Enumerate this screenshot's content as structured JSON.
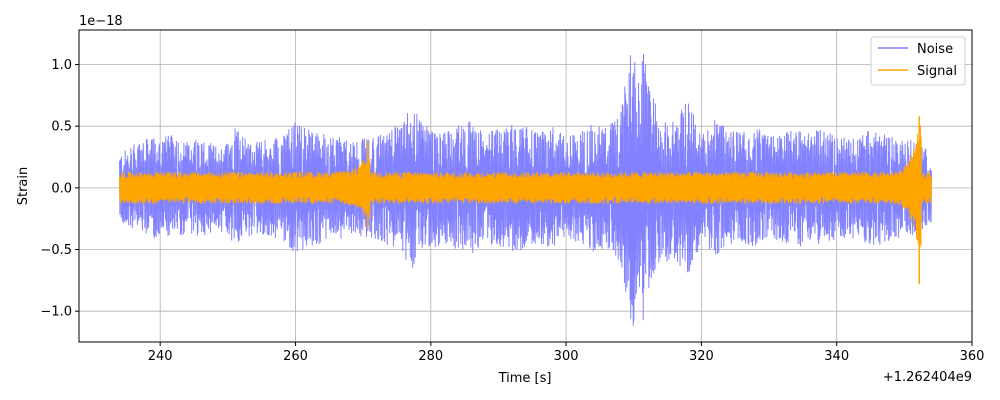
{
  "chart_data": {
    "type": "line",
    "title": "",
    "xlabel": "Time [s]",
    "ylabel": "Strain",
    "x_offset_text": "+1.262404e9",
    "y_scale_text": "1e−18",
    "xlim": [
      228,
      360
    ],
    "ylim": [
      -1.25,
      1.28
    ],
    "x_ticks": [
      240,
      260,
      280,
      300,
      320,
      340,
      360
    ],
    "x_tick_labels": [
      "240",
      "260",
      "280",
      "300",
      "320",
      "340",
      "360"
    ],
    "y_ticks": [
      -1.0,
      -0.5,
      0.0,
      0.5,
      1.0
    ],
    "y_tick_labels": [
      "−1.0",
      "−0.5",
      "0.0",
      "0.5",
      "1.0"
    ],
    "grid": true,
    "legend_position": "top-right",
    "series": [
      {
        "name": "Noise",
        "color": "#7b7bff",
        "x_range": [
          234,
          354
        ],
        "envelope": [
          [
            234,
            0.28
          ],
          [
            236,
            0.35
          ],
          [
            238,
            0.4
          ],
          [
            240,
            0.42
          ],
          [
            242,
            0.43
          ],
          [
            244,
            0.38
          ],
          [
            246,
            0.4
          ],
          [
            248,
            0.35
          ],
          [
            250,
            0.38
          ],
          [
            251,
            0.52
          ],
          [
            252,
            0.45
          ],
          [
            254,
            0.37
          ],
          [
            256,
            0.4
          ],
          [
            258,
            0.42
          ],
          [
            260,
            0.55
          ],
          [
            262,
            0.48
          ],
          [
            264,
            0.45
          ],
          [
            266,
            0.42
          ],
          [
            268,
            0.4
          ],
          [
            270,
            0.4
          ],
          [
            272,
            0.42
          ],
          [
            274,
            0.48
          ],
          [
            276,
            0.55
          ],
          [
            277,
            0.68
          ],
          [
            278,
            0.6
          ],
          [
            280,
            0.5
          ],
          [
            282,
            0.45
          ],
          [
            284,
            0.52
          ],
          [
            286,
            0.55
          ],
          [
            288,
            0.45
          ],
          [
            290,
            0.48
          ],
          [
            292,
            0.52
          ],
          [
            294,
            0.5
          ],
          [
            296,
            0.45
          ],
          [
            298,
            0.5
          ],
          [
            300,
            0.42
          ],
          [
            302,
            0.45
          ],
          [
            304,
            0.52
          ],
          [
            306,
            0.5
          ],
          [
            308,
            0.6
          ],
          [
            309.5,
            1.1
          ],
          [
            310,
            1.15
          ],
          [
            310.5,
            0.8
          ],
          [
            311.5,
            1.12
          ],
          [
            312,
            0.85
          ],
          [
            314,
            0.58
          ],
          [
            316,
            0.62
          ],
          [
            318,
            0.72
          ],
          [
            319,
            0.58
          ],
          [
            320,
            0.45
          ],
          [
            322,
            0.55
          ],
          [
            324,
            0.48
          ],
          [
            326,
            0.45
          ],
          [
            328,
            0.5
          ],
          [
            330,
            0.42
          ],
          [
            332,
            0.45
          ],
          [
            334,
            0.5
          ],
          [
            336,
            0.45
          ],
          [
            338,
            0.48
          ],
          [
            340,
            0.42
          ],
          [
            342,
            0.4
          ],
          [
            344,
            0.45
          ],
          [
            346,
            0.48
          ],
          [
            348,
            0.42
          ],
          [
            350,
            0.4
          ],
          [
            352,
            0.38
          ],
          [
            354,
            0.28
          ]
        ]
      },
      {
        "name": "Signal",
        "color": "#ffa500",
        "x_range": [
          234,
          354
        ],
        "baseline_amplitude": 0.13,
        "events": [
          {
            "t_start": 262,
            "t_merge": 270.7,
            "peak": 0.38
          },
          {
            "t_start": 345,
            "t_merge": 352.2,
            "peak": 0.78
          }
        ]
      }
    ]
  }
}
